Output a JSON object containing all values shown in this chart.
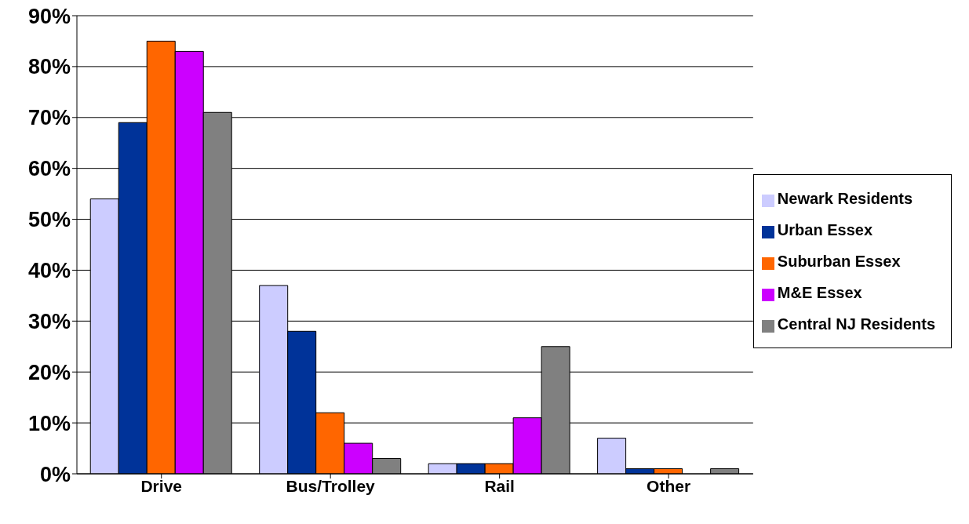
{
  "chart_data": {
    "type": "bar",
    "categories": [
      "Drive",
      "Bus/Trolley",
      "Rail",
      "Other"
    ],
    "series": [
      {
        "name": "Newark Residents",
        "color": "#ccccff",
        "values": [
          54,
          37,
          2,
          7
        ]
      },
      {
        "name": "Urban Essex",
        "color": "#003399",
        "values": [
          69,
          28,
          2,
          1
        ]
      },
      {
        "name": "Suburban Essex",
        "color": "#ff6600",
        "values": [
          85,
          12,
          2,
          1
        ]
      },
      {
        "name": "M&E Essex",
        "color": "#cc00ff",
        "values": [
          83,
          6,
          11,
          0
        ]
      },
      {
        "name": "Central NJ Residents",
        "color": "#808080",
        "values": [
          71,
          3,
          25,
          1
        ]
      }
    ],
    "ylim": [
      0,
      90
    ],
    "yticks": [
      {
        "value": 0,
        "label": "0%"
      },
      {
        "value": 10,
        "label": "10%"
      },
      {
        "value": 20,
        "label": "20%"
      },
      {
        "value": 30,
        "label": "30%"
      },
      {
        "value": 40,
        "label": "40%"
      },
      {
        "value": 50,
        "label": "50%"
      },
      {
        "value": 60,
        "label": "60%"
      },
      {
        "value": 70,
        "label": "70%"
      },
      {
        "value": 80,
        "label": "80%"
      },
      {
        "value": 90,
        "label": "90%"
      }
    ],
    "grid": "y",
    "legend": "right"
  }
}
